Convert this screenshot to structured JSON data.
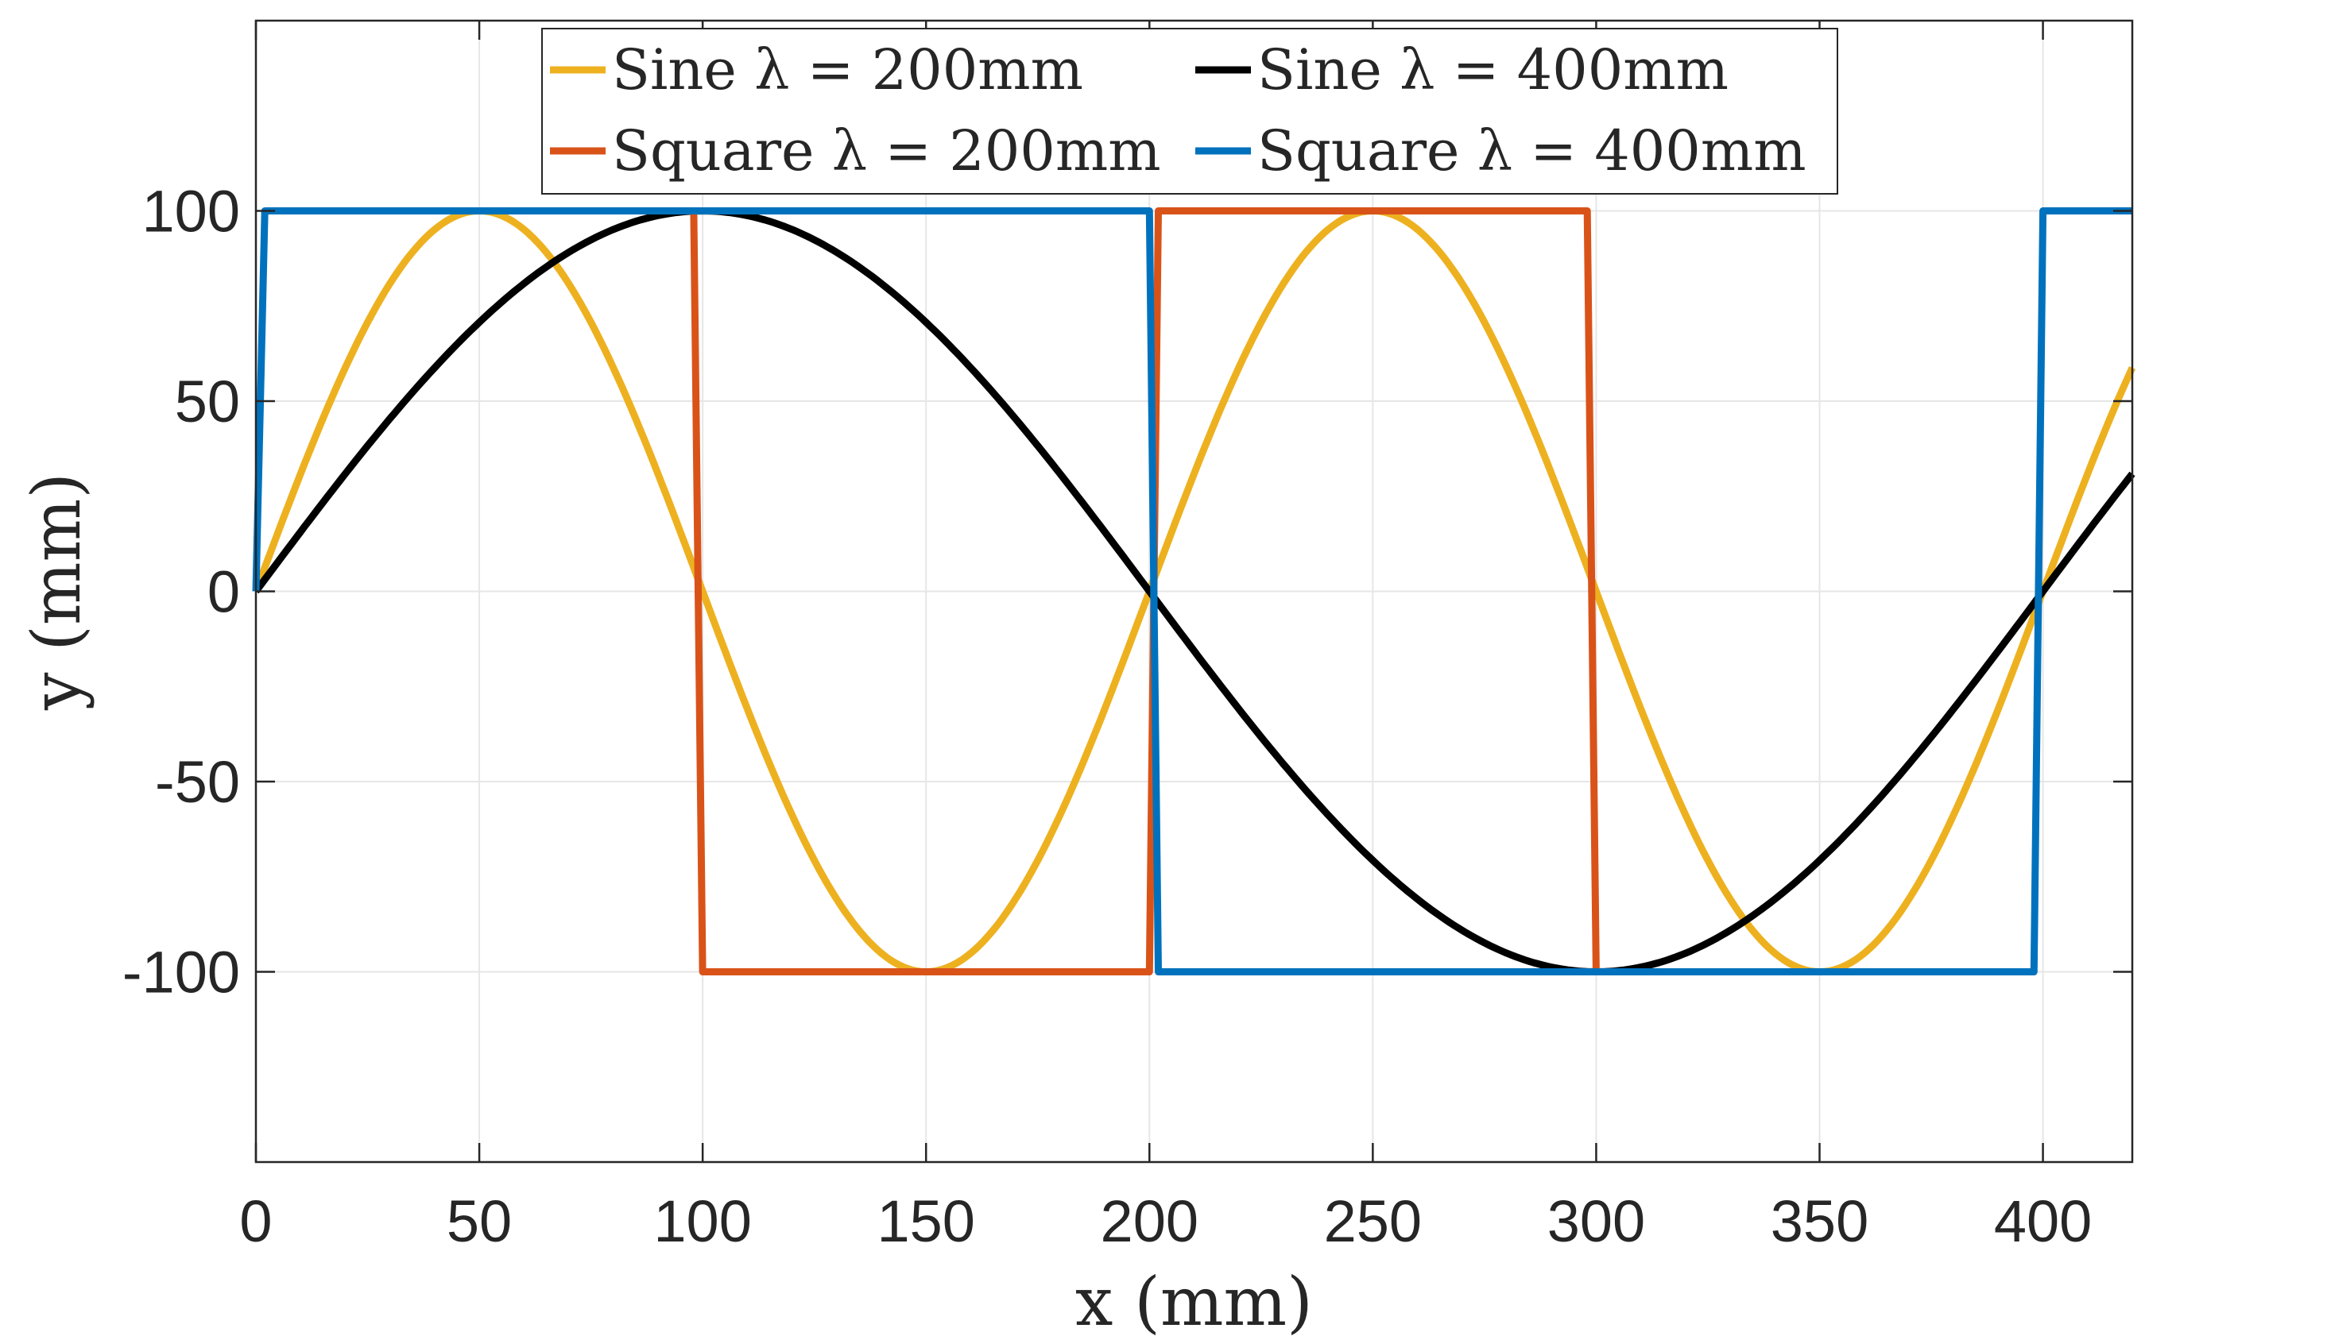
{
  "chart_data": {
    "type": "line",
    "title": "",
    "xlabel": "x (mm)",
    "ylabel": "y (mm)",
    "xlim": [
      0,
      420
    ],
    "ylim": [
      -150,
      150
    ],
    "x_ticks": [
      0,
      50,
      100,
      150,
      200,
      250,
      300,
      350,
      400
    ],
    "y_ticks": [
      -100,
      -50,
      0,
      50,
      100
    ],
    "grid": true,
    "legend_position": "top",
    "series": [
      {
        "name": "Sine λ = 200mm",
        "color": "#EDB120",
        "kind": "sine",
        "amplitude": 100,
        "wavelength": 200,
        "x": [
          0,
          25,
          50,
          75,
          100,
          125,
          150,
          175,
          200,
          225,
          250,
          275,
          300,
          325,
          350,
          375,
          400,
          420
        ],
        "y": [
          0,
          70.7,
          100,
          70.7,
          0,
          -70.7,
          -100,
          -70.7,
          0,
          70.7,
          100,
          70.7,
          0,
          -70.7,
          -100,
          -70.7,
          0,
          58.8
        ]
      },
      {
        "name": "Square λ = 200mm",
        "color": "#D95319",
        "kind": "square",
        "x": [
          98,
          100,
          200,
          202,
          298,
          300
        ],
        "y": [
          100,
          -100,
          -100,
          100,
          100,
          -100
        ]
      },
      {
        "name": "Sine λ = 400mm",
        "color": "#000000",
        "kind": "sine",
        "amplitude": 100,
        "wavelength": 400,
        "x": [
          0,
          50,
          100,
          150,
          200,
          250,
          300,
          350,
          400,
          420
        ],
        "y": [
          0,
          70.7,
          100,
          70.7,
          0,
          -70.7,
          -100,
          -70.7,
          0,
          30.9
        ]
      },
      {
        "name": "Square λ = 400mm",
        "color": "#0072BD",
        "kind": "square",
        "x": [
          0,
          2,
          200,
          202,
          398,
          400,
          420
        ],
        "y": [
          0,
          100,
          100,
          -100,
          -100,
          100,
          100
        ]
      }
    ]
  }
}
